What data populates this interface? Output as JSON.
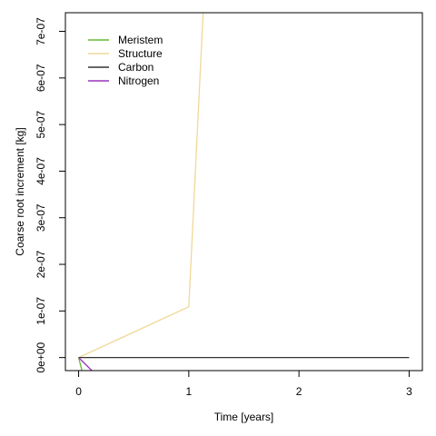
{
  "chart_data": {
    "type": "line",
    "title": "",
    "xlabel": "Time [years]",
    "ylabel": "Coarse root increment [kg]",
    "xlim": [
      -0.12,
      3.12
    ],
    "ylim": [
      -2.8e-08,
      7.4e-07
    ],
    "x_ticks": [
      0,
      1,
      2,
      3
    ],
    "x_tick_labels": [
      "0",
      "1",
      "2",
      "3"
    ],
    "y_ticks": [
      0,
      1e-07,
      2e-07,
      3e-07,
      4e-07,
      5e-07,
      6e-07,
      7e-07
    ],
    "y_tick_labels": [
      "0e+00",
      "1e-07",
      "2e-07",
      "3e-07",
      "4e-07",
      "5e-07",
      "6e-07",
      "7e-07"
    ],
    "grid": false,
    "legend_position": "top-left",
    "series": [
      {
        "name": "Meristem",
        "color": "#66bb33",
        "x": [
          0,
          0.03
        ],
        "y": [
          0,
          -2.8e-08
        ]
      },
      {
        "name": "Structure",
        "color": "#f0d898",
        "x": [
          0,
          1,
          1.13
        ],
        "y": [
          0,
          1.09e-07,
          7.4e-07
        ]
      },
      {
        "name": "Carbon",
        "color": "#333333",
        "x": [
          0,
          1,
          2,
          3
        ],
        "y": [
          0,
          0,
          0,
          0
        ]
      },
      {
        "name": "Nitrogen",
        "color": "#9933bb",
        "x": [
          0,
          0.12
        ],
        "y": [
          0,
          -2.8e-08
        ]
      }
    ]
  }
}
